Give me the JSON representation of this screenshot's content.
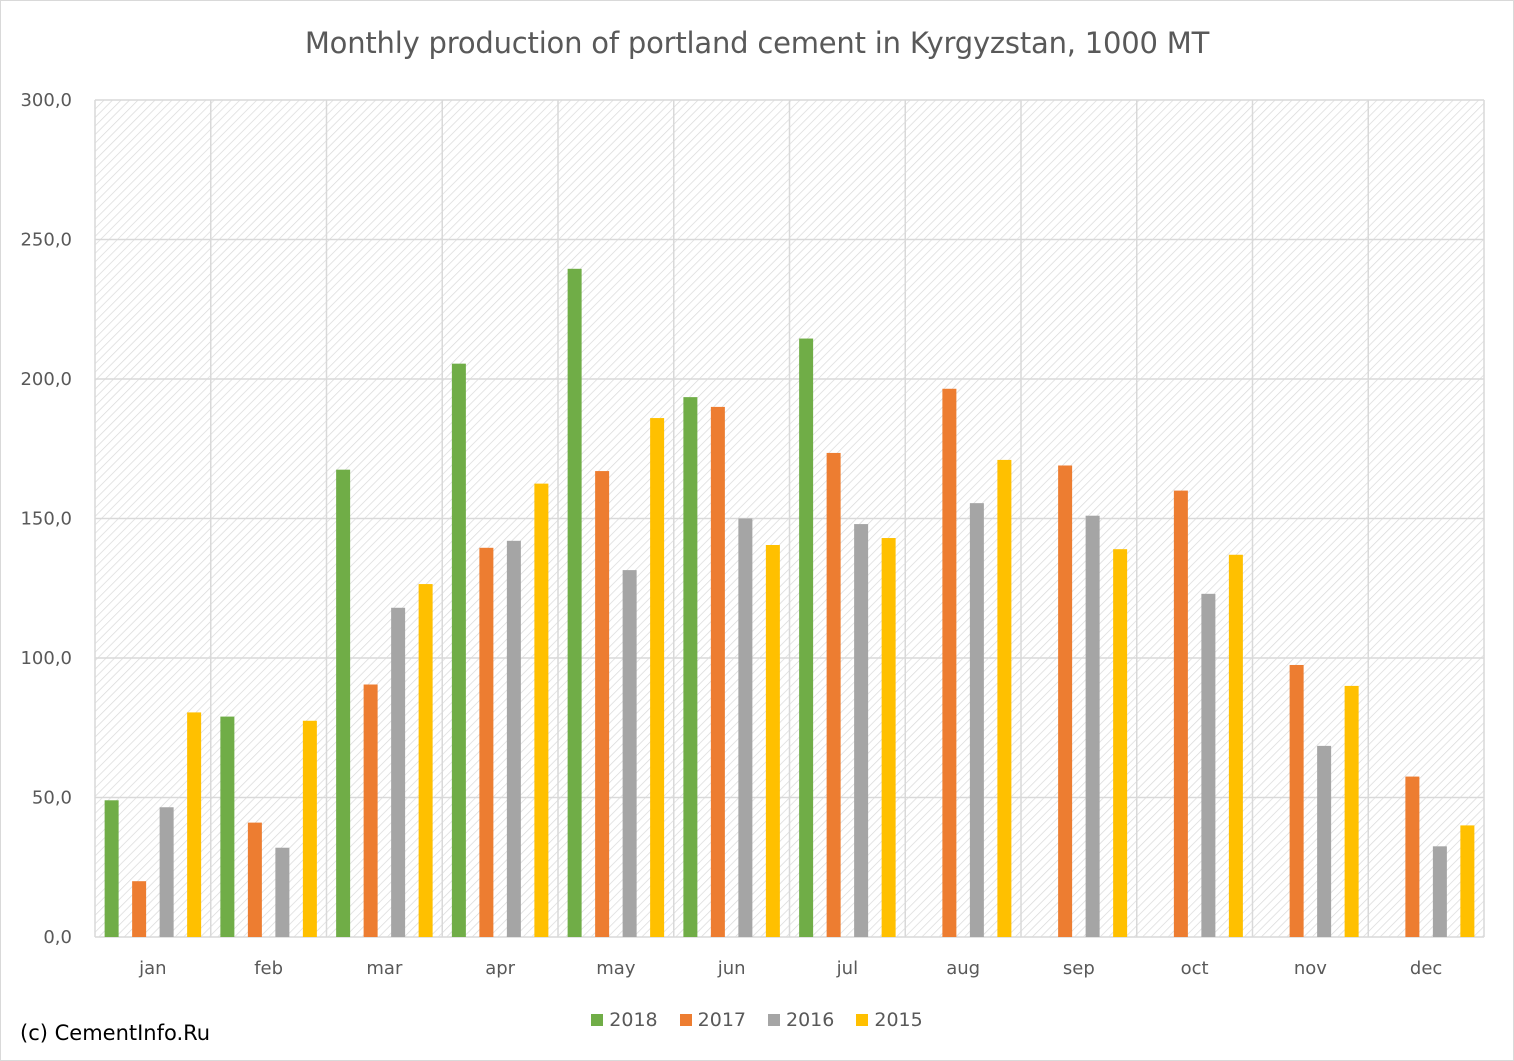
{
  "chart_data": {
    "type": "bar",
    "title": "Monthly production of portland cement in Kyrgyzstan, 1000 MT",
    "xlabel": "",
    "ylabel": "",
    "categories": [
      "jan",
      "feb",
      "mar",
      "apr",
      "may",
      "jun",
      "jul",
      "aug",
      "sep",
      "oct",
      "nov",
      "dec"
    ],
    "series": [
      {
        "name": "2018",
        "color": "#70AD47",
        "values": [
          49.0,
          79.0,
          167.5,
          205.5,
          239.5,
          193.5,
          214.5,
          null,
          null,
          null,
          null,
          null
        ]
      },
      {
        "name": "2017",
        "color": "#ED7D31",
        "values": [
          20.0,
          41.0,
          90.5,
          139.5,
          167.0,
          190.0,
          173.5,
          196.5,
          169.0,
          160.0,
          97.5,
          57.5
        ]
      },
      {
        "name": "2016",
        "color": "#A5A5A5",
        "values": [
          46.5,
          32.0,
          118.0,
          142.0,
          131.5,
          150.0,
          148.0,
          155.5,
          151.0,
          123.0,
          68.5,
          32.5
        ]
      },
      {
        "name": "2015",
        "color": "#FFC000",
        "values": [
          80.5,
          77.5,
          126.5,
          162.5,
          186.0,
          140.5,
          143.0,
          171.0,
          139.0,
          137.0,
          90.0,
          40.0
        ]
      }
    ],
    "ylim": [
      0,
      300
    ],
    "yticks": [
      "0,0",
      "50,0",
      "100,0",
      "150,0",
      "200,0",
      "250,0",
      "300,0"
    ],
    "ytick_values": [
      0,
      50,
      100,
      150,
      200,
      250,
      300
    ],
    "grid": true,
    "legend_position": "bottom"
  },
  "footer": {
    "copyright": "(c) CementInfo.Ru"
  }
}
